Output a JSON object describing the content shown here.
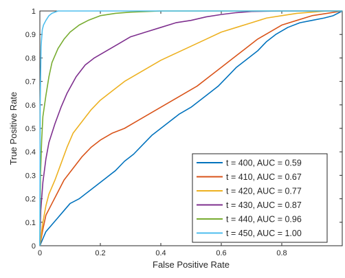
{
  "chart_data": {
    "type": "line",
    "title": "",
    "xlabel": "False Positive Rate",
    "ylabel": "True Positive Rate",
    "xlim": [
      0,
      1
    ],
    "ylim": [
      0,
      1
    ],
    "grid": false,
    "legend_position": "bottom-right",
    "x_ticks": [
      0,
      0.2,
      0.4,
      0.6,
      0.8
    ],
    "x_tick_labels": [
      "0",
      "0.2",
      "0.4",
      "0.6",
      "0.8"
    ],
    "y_ticks": [
      0,
      0.1,
      0.2,
      0.3,
      0.4,
      0.5,
      0.6,
      0.7,
      0.8,
      0.9,
      1
    ],
    "y_tick_labels": [
      "0",
      "0.1",
      "0.2",
      "0.3",
      "0.4",
      "0.5",
      "0.6",
      "0.7",
      "0.8",
      "0.9",
      "1"
    ],
    "series": [
      {
        "name": "t = 400, AUC = 0.59",
        "color": "#0072BD",
        "points": [
          [
            0,
            0
          ],
          [
            0.01,
            0.03
          ],
          [
            0.02,
            0.06
          ],
          [
            0.04,
            0.09
          ],
          [
            0.06,
            0.12
          ],
          [
            0.08,
            0.15
          ],
          [
            0.1,
            0.18
          ],
          [
            0.13,
            0.2
          ],
          [
            0.16,
            0.23
          ],
          [
            0.19,
            0.26
          ],
          [
            0.22,
            0.29
          ],
          [
            0.25,
            0.32
          ],
          [
            0.28,
            0.36
          ],
          [
            0.31,
            0.39
          ],
          [
            0.34,
            0.43
          ],
          [
            0.37,
            0.47
          ],
          [
            0.4,
            0.5
          ],
          [
            0.43,
            0.53
          ],
          [
            0.46,
            0.56
          ],
          [
            0.5,
            0.59
          ],
          [
            0.53,
            0.62
          ],
          [
            0.56,
            0.65
          ],
          [
            0.59,
            0.68
          ],
          [
            0.62,
            0.72
          ],
          [
            0.65,
            0.76
          ],
          [
            0.68,
            0.79
          ],
          [
            0.72,
            0.83
          ],
          [
            0.75,
            0.87
          ],
          [
            0.78,
            0.9
          ],
          [
            0.82,
            0.93
          ],
          [
            0.86,
            0.95
          ],
          [
            0.9,
            0.96
          ],
          [
            0.94,
            0.97
          ],
          [
            0.97,
            0.98
          ],
          [
            1,
            1
          ]
        ]
      },
      {
        "name": "t = 410, AUC = 0.67",
        "color": "#D95319",
        "points": [
          [
            0,
            0
          ],
          [
            0.01,
            0.07
          ],
          [
            0.02,
            0.13
          ],
          [
            0.04,
            0.18
          ],
          [
            0.06,
            0.23
          ],
          [
            0.08,
            0.28
          ],
          [
            0.11,
            0.33
          ],
          [
            0.14,
            0.38
          ],
          [
            0.17,
            0.42
          ],
          [
            0.2,
            0.45
          ],
          [
            0.24,
            0.48
          ],
          [
            0.28,
            0.5
          ],
          [
            0.32,
            0.53
          ],
          [
            0.36,
            0.56
          ],
          [
            0.4,
            0.59
          ],
          [
            0.44,
            0.62
          ],
          [
            0.48,
            0.65
          ],
          [
            0.52,
            0.68
          ],
          [
            0.56,
            0.72
          ],
          [
            0.6,
            0.76
          ],
          [
            0.64,
            0.8
          ],
          [
            0.68,
            0.84
          ],
          [
            0.72,
            0.88
          ],
          [
            0.76,
            0.91
          ],
          [
            0.8,
            0.94
          ],
          [
            0.85,
            0.96
          ],
          [
            0.9,
            0.98
          ],
          [
            0.95,
            0.99
          ],
          [
            1,
            1
          ]
        ]
      },
      {
        "name": "t = 420, AUC = 0.77",
        "color": "#EDB120",
        "points": [
          [
            0,
            0
          ],
          [
            0.01,
            0.1
          ],
          [
            0.02,
            0.17
          ],
          [
            0.03,
            0.22
          ],
          [
            0.05,
            0.28
          ],
          [
            0.07,
            0.35
          ],
          [
            0.09,
            0.42
          ],
          [
            0.11,
            0.48
          ],
          [
            0.14,
            0.53
          ],
          [
            0.17,
            0.58
          ],
          [
            0.2,
            0.62
          ],
          [
            0.24,
            0.66
          ],
          [
            0.28,
            0.7
          ],
          [
            0.32,
            0.73
          ],
          [
            0.36,
            0.76
          ],
          [
            0.4,
            0.79
          ],
          [
            0.45,
            0.82
          ],
          [
            0.5,
            0.85
          ],
          [
            0.55,
            0.88
          ],
          [
            0.6,
            0.91
          ],
          [
            0.65,
            0.93
          ],
          [
            0.7,
            0.95
          ],
          [
            0.75,
            0.97
          ],
          [
            0.8,
            0.98
          ],
          [
            0.85,
            0.99
          ],
          [
            0.9,
            0.995
          ],
          [
            0.95,
            1
          ],
          [
            1,
            1
          ]
        ]
      },
      {
        "name": "t = 430, AUC = 0.87",
        "color": "#7E2F8E",
        "points": [
          [
            0,
            0
          ],
          [
            0.003,
            0.15
          ],
          [
            0.01,
            0.27
          ],
          [
            0.02,
            0.37
          ],
          [
            0.03,
            0.44
          ],
          [
            0.05,
            0.52
          ],
          [
            0.07,
            0.59
          ],
          [
            0.09,
            0.65
          ],
          [
            0.12,
            0.72
          ],
          [
            0.15,
            0.77
          ],
          [
            0.18,
            0.8
          ],
          [
            0.22,
            0.83
          ],
          [
            0.26,
            0.86
          ],
          [
            0.3,
            0.89
          ],
          [
            0.35,
            0.91
          ],
          [
            0.4,
            0.93
          ],
          [
            0.45,
            0.95
          ],
          [
            0.5,
            0.96
          ],
          [
            0.55,
            0.975
          ],
          [
            0.6,
            0.985
          ],
          [
            0.65,
            0.993
          ],
          [
            0.7,
            0.998
          ],
          [
            0.8,
            1
          ],
          [
            1,
            1
          ]
        ]
      },
      {
        "name": "t = 440, AUC = 0.96",
        "color": "#77AC30",
        "points": [
          [
            0,
            0
          ],
          [
            0.002,
            0.3
          ],
          [
            0.006,
            0.45
          ],
          [
            0.01,
            0.55
          ],
          [
            0.02,
            0.64
          ],
          [
            0.03,
            0.72
          ],
          [
            0.04,
            0.78
          ],
          [
            0.06,
            0.84
          ],
          [
            0.08,
            0.88
          ],
          [
            0.1,
            0.91
          ],
          [
            0.13,
            0.94
          ],
          [
            0.16,
            0.96
          ],
          [
            0.2,
            0.98
          ],
          [
            0.25,
            0.99
          ],
          [
            0.3,
            0.995
          ],
          [
            0.4,
            1
          ],
          [
            1,
            1
          ]
        ]
      },
      {
        "name": "t = 450, AUC = 1.00",
        "color": "#4DBEEE",
        "points": [
          [
            0,
            0
          ],
          [
            0.001,
            0.6
          ],
          [
            0.004,
            0.85
          ],
          [
            0.008,
            0.92
          ],
          [
            0.012,
            0.94
          ],
          [
            0.02,
            0.96
          ],
          [
            0.03,
            0.98
          ],
          [
            0.04,
            0.99
          ],
          [
            0.06,
            1
          ],
          [
            1,
            1
          ]
        ]
      }
    ]
  }
}
